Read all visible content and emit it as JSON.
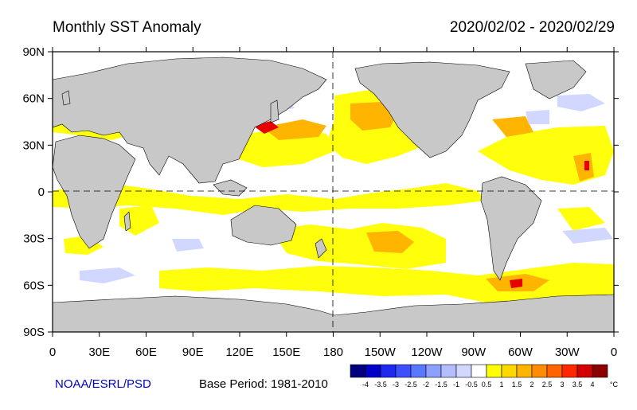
{
  "title": "Monthly SST Anomaly",
  "date_range": "2020/02/02 - 2020/02/29",
  "credit": "NOAA/ESRL/PSD",
  "base_period": "Base Period: 1981-2010",
  "y_ticks": [
    "90N",
    "60N",
    "30N",
    "0",
    "30S",
    "60S",
    "90S"
  ],
  "x_ticks": [
    "0",
    "30E",
    "60E",
    "90E",
    "120E",
    "150E",
    "180",
    "150W",
    "120W",
    "90W",
    "60W",
    "30W",
    "0"
  ],
  "colorbar": {
    "unit": "°C",
    "labels": [
      "-4",
      "-3.5",
      "-3",
      "-2.5",
      "-2",
      "-1.5",
      "-1",
      "-0.5",
      "0.5",
      "1",
      "1.5",
      "2",
      "2.5",
      "3",
      "3.5",
      "4"
    ],
    "colors": [
      "#00007f",
      "#0000c8",
      "#1e28f0",
      "#3c50ff",
      "#5a78ff",
      "#8ca0ff",
      "#b4beff",
      "#d2d7ff",
      "#ffffff",
      "#ffff00",
      "#ffd800",
      "#ffb400",
      "#ff8c00",
      "#ff6400",
      "#ff2800",
      "#d20000",
      "#8c0000"
    ]
  },
  "colors": {
    "land": "#c8c8c8",
    "ocean": "#ffffff",
    "credit": "#0000cc"
  }
}
